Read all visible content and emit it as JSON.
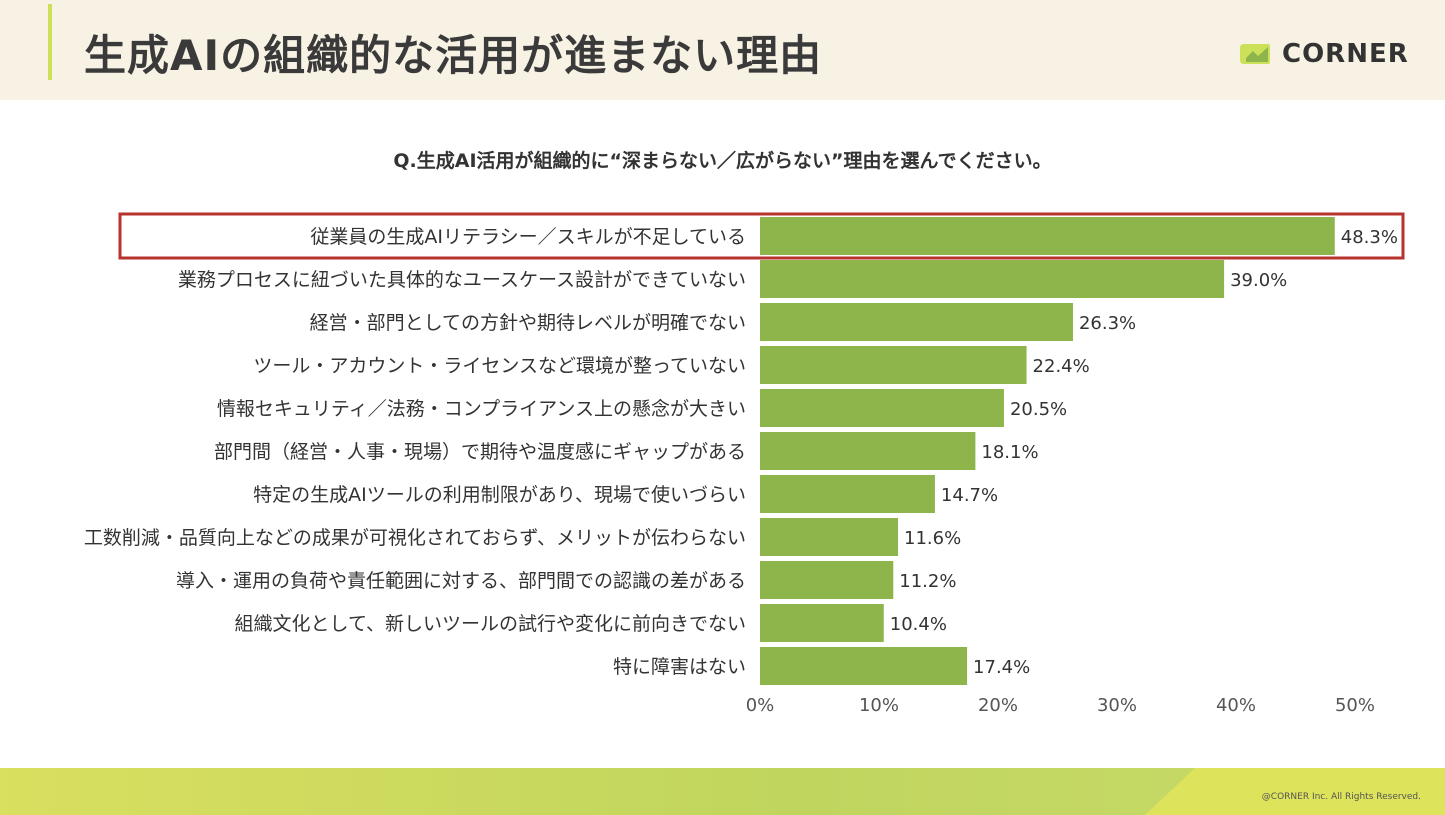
{
  "header": {
    "title": "生成AIの組織的な活用が進まない理由",
    "logo_text": "CORNER"
  },
  "question": "Q.生成AI活用が組織的に“深まらない／広がらない”理由を選んでください。",
  "footer": {
    "copyright": "@CORNER Inc. All Rights Reserved."
  },
  "colors": {
    "bar": "#8db54b",
    "highlight_border": "#b8322e",
    "header_bg": "#f7f2e3",
    "accent": "#cde05a"
  },
  "chart_data": {
    "type": "bar",
    "orientation": "horizontal",
    "title": "",
    "xlabel": "",
    "ylabel": "",
    "xlim": [
      0,
      50
    ],
    "ticks": [
      0,
      10,
      20,
      30,
      40,
      50
    ],
    "tick_labels": [
      "0%",
      "10%",
      "20%",
      "30%",
      "40%",
      "50%"
    ],
    "grid": false,
    "highlighted_index": 0,
    "categories": [
      "従業員の生成AIリテラシー／スキルが不足している",
      "業務プロセスに紐づいた具体的なユースケース設計ができていない",
      "経営・部門としての方針や期待レベルが明確でない",
      "ツール・アカウント・ライセンスなど環境が整っていない",
      "情報セキュリティ／法務・コンプライアンス上の懸念が大きい",
      "部門間（経営・人事・現場）で期待や温度感にギャップがある",
      "特定の生成AIツールの利用制限があり、現場で使いづらい",
      "工数削減・品質向上などの成果が可視化されておらず、メリットが伝わらない",
      "導入・運用の負荷や責任範囲に対する、部門間での認識の差がある",
      "組織文化として、新しいツールの試行や変化に前向きでない",
      "特に障害はない"
    ],
    "values": [
      48.3,
      39.0,
      26.3,
      22.4,
      20.5,
      18.1,
      14.7,
      11.6,
      11.2,
      10.4,
      17.4
    ],
    "value_labels": [
      "48.3%",
      "39.0%",
      "26.3%",
      "22.4%",
      "20.5%",
      "18.1%",
      "14.7%",
      "11.6%",
      "11.2%",
      "10.4%",
      "17.4%"
    ]
  }
}
